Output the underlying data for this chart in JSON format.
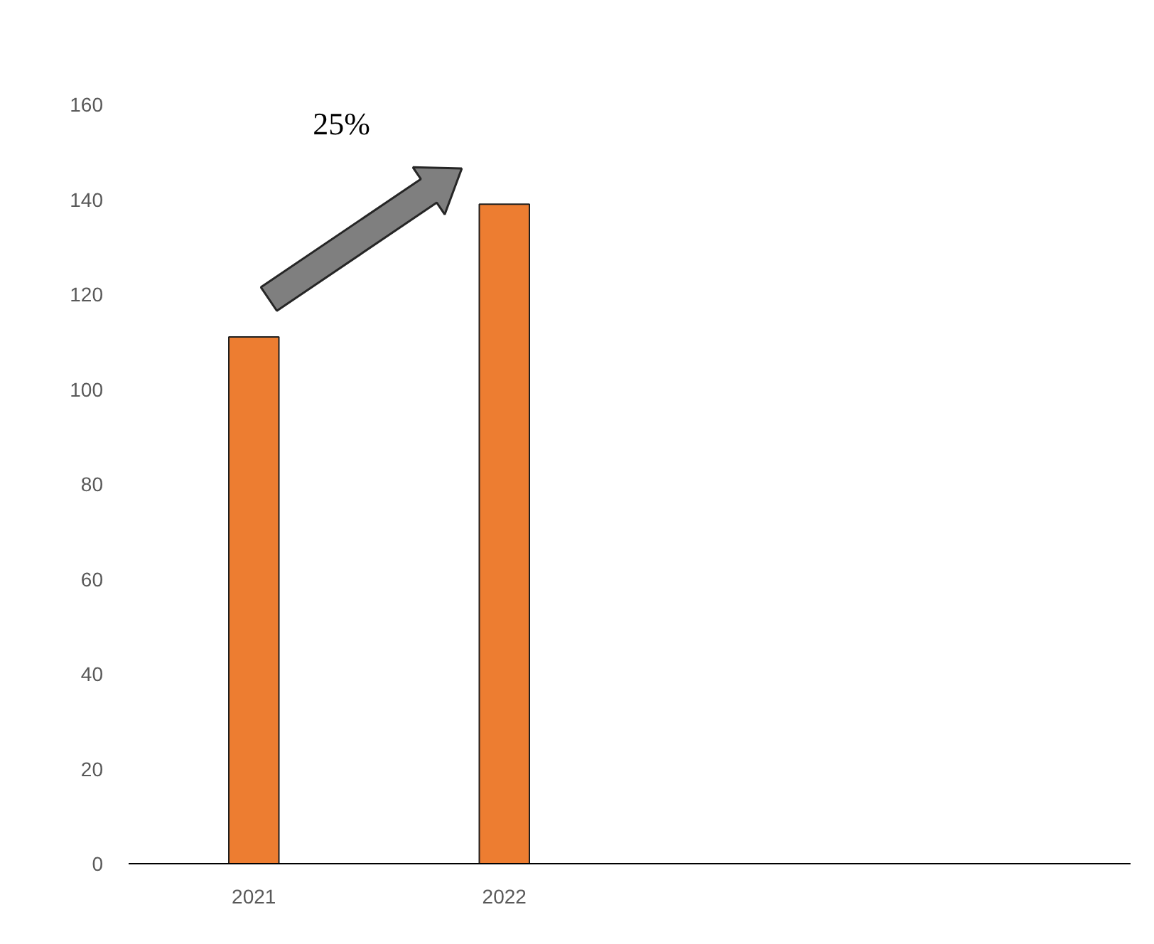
{
  "chart_data": {
    "type": "bar",
    "categories": [
      "2021",
      "2022",
      null,
      null
    ],
    "values": [
      111,
      139,
      null,
      null
    ],
    "color": "#ed7d31",
    "ylim": [
      0,
      160
    ],
    "yticks": [
      0,
      20,
      40,
      60,
      80,
      100,
      120,
      140,
      160
    ],
    "grid": false,
    "annotations": [
      "25%"
    ]
  }
}
